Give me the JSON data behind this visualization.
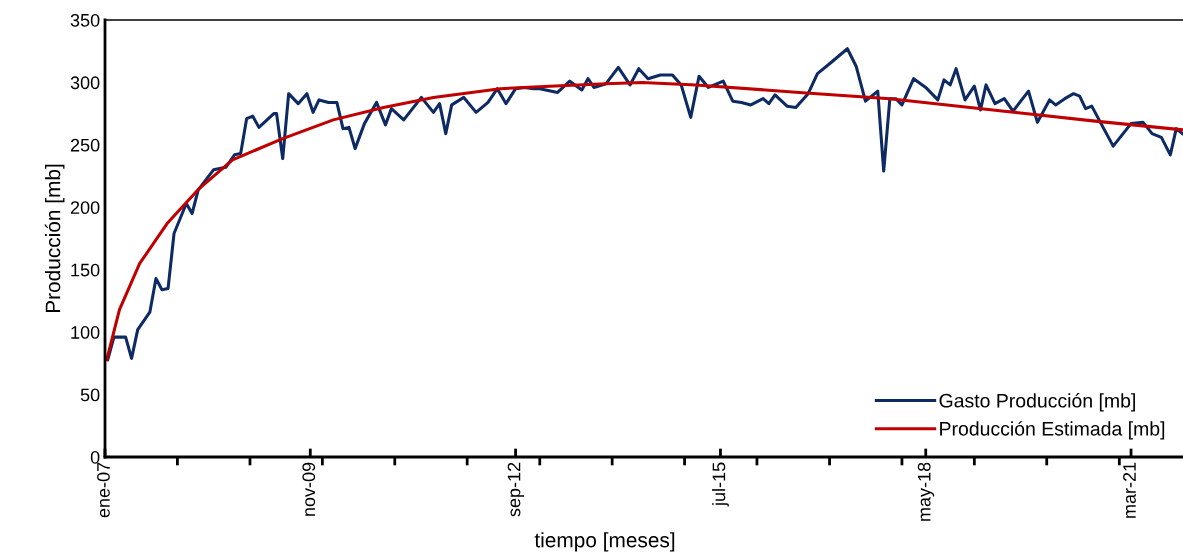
{
  "chart_data": {
    "type": "line",
    "xlabel": "tiempo [meses]",
    "ylabel": "Producción [mb]",
    "xlim": [
      "2007-01-01",
      "2021-11-18"
    ],
    "ylim": [
      0,
      350
    ],
    "yticks": [
      0,
      50,
      100,
      150,
      200,
      250,
      300,
      350
    ],
    "xticks": [
      {
        "value": "2007-01-01",
        "label": "ene-07"
      },
      {
        "value": "2008-01-01",
        "label": null
      },
      {
        "value": "2009-01-01",
        "label": null
      },
      {
        "value": "2009-11-01",
        "label": "nov-09"
      },
      {
        "value": "2010-01-01",
        "label": null
      },
      {
        "value": "2011-01-01",
        "label": null
      },
      {
        "value": "2012-01-01",
        "label": null
      },
      {
        "value": "2012-09-01",
        "label": "sep-12"
      },
      {
        "value": "2013-01-01",
        "label": null
      },
      {
        "value": "2014-01-01",
        "label": null
      },
      {
        "value": "2015-01-01",
        "label": null
      },
      {
        "value": "2015-07-01",
        "label": "jul-15"
      },
      {
        "value": "2016-01-01",
        "label": null
      },
      {
        "value": "2017-01-01",
        "label": null
      },
      {
        "value": "2018-01-01",
        "label": null
      },
      {
        "value": "2018-05-01",
        "label": "may-18"
      },
      {
        "value": "2019-01-01",
        "label": null
      },
      {
        "value": "2020-01-01",
        "label": null
      },
      {
        "value": "2021-01-01",
        "label": null
      },
      {
        "value": "2021-03-01",
        "label": "mar-21"
      }
    ],
    "grid": false,
    "legend": "bottom right",
    "marker": "none",
    "line_style": "solid",
    "series": [
      {
        "name": "Gasto Producción [mb]",
        "color": "#0d2a63",
        "x": [
          "2007-01-15",
          "2007-02-15",
          "2007-04-15",
          "2007-05-15",
          "2007-06-15",
          "2007-08-15",
          "2007-09-15",
          "2007-10-15",
          "2007-11-15",
          "2007-12-15",
          "2008-02-15",
          "2008-03-15",
          "2008-04-15",
          "2008-07-01",
          "2008-09-01",
          "2008-10-15",
          "2008-11-15",
          "2008-12-15",
          "2009-01-15",
          "2009-02-15",
          "2009-05-01",
          "2009-05-15",
          "2009-06-15",
          "2009-07-15",
          "2009-09-01",
          "2009-10-15",
          "2009-11-15",
          "2009-12-15",
          "2010-02-01",
          "2010-03-15",
          "2010-04-15",
          "2010-05-15",
          "2010-06-15",
          "2010-08-01",
          "2010-10-01",
          "2010-11-15",
          "2010-12-15",
          "2011-02-15",
          "2011-05-15",
          "2011-07-15",
          "2011-08-15",
          "2011-09-15",
          "2011-10-15",
          "2011-12-15",
          "2012-02-15",
          "2012-04-15",
          "2012-06-01",
          "2012-07-15",
          "2012-09-01",
          "2012-10-15",
          "2012-12-01",
          "2013-01-01",
          "2013-04-01",
          "2013-06-01",
          "2013-08-01",
          "2013-09-01",
          "2013-10-01",
          "2013-12-01",
          "2014-02-01",
          "2014-04-01",
          "2014-05-15",
          "2014-07-01",
          "2014-09-01",
          "2014-11-01",
          "2014-12-15",
          "2015-02-01",
          "2015-03-15",
          "2015-05-01",
          "2015-07-15",
          "2015-09-01",
          "2015-10-15",
          "2015-12-01",
          "2016-02-01",
          "2016-03-01",
          "2016-04-01",
          "2016-06-01",
          "2016-07-15",
          "2016-09-15",
          "2016-11-01",
          "2017-01-01",
          "2017-04-01",
          "2017-05-15",
          "2017-07-01",
          "2017-09-01",
          "2017-10-01",
          "2017-11-01",
          "2017-12-01",
          "2018-01-01",
          "2018-03-01",
          "2018-05-01",
          "2018-07-01",
          "2018-08-01",
          "2018-09-01",
          "2018-10-01",
          "2018-11-15",
          "2019-01-01",
          "2019-02-01",
          "2019-03-01",
          "2019-04-15",
          "2019-06-01",
          "2019-07-15",
          "2019-10-01",
          "2019-11-15",
          "2020-01-15",
          "2020-02-15",
          "2020-04-01",
          "2020-05-15",
          "2020-06-15",
          "2020-07-15",
          "2020-08-15",
          "2020-10-01",
          "2020-12-01",
          "2021-03-01",
          "2021-05-01",
          "2021-06-15",
          "2021-08-01",
          "2021-09-15",
          "2021-10-15",
          "2021-11-15"
        ],
        "values": [
          78,
          96,
          96,
          79,
          102,
          116,
          143,
          134,
          135,
          179,
          203,
          195,
          214,
          230,
          232,
          242,
          243,
          271,
          273,
          264,
          275,
          275,
          239,
          291,
          283,
          291,
          276,
          286,
          284,
          284,
          263,
          264,
          247,
          267,
          284,
          266,
          279,
          270,
          288,
          276,
          283,
          259,
          282,
          288,
          276,
          284,
          295,
          283,
          295,
          296,
          295,
          295,
          292,
          301,
          294,
          303,
          296,
          299,
          312,
          298,
          311,
          303,
          306,
          306,
          298,
          272,
          305,
          296,
          301,
          285,
          284,
          282,
          287,
          283,
          290,
          281,
          280,
          291,
          307,
          315,
          327,
          313,
          285,
          293,
          229,
          287,
          287,
          282,
          303,
          296,
          286,
          302,
          298,
          311,
          286,
          297,
          278,
          298,
          283,
          287,
          277,
          293,
          268,
          286,
          282,
          287,
          291,
          289,
          279,
          281,
          267,
          249,
          267,
          268,
          259,
          256,
          242,
          263,
          259
        ]
      },
      {
        "name": "Producción Estimada [mb]",
        "color": "#c00000",
        "x": [
          "2007-01-10",
          "2007-03-15",
          "2007-06-25",
          "2007-11-10",
          "2008-04-20",
          "2008-10-05",
          "2009-06-15",
          "2010-02-25",
          "2010-11-05",
          "2011-07-15",
          "2012-06-15",
          "2013-02-20",
          "2013-12-01",
          "2014-06-01",
          "2015-03-01",
          "2016-08-01",
          "2017-11-01",
          "2019-06-01",
          "2020-09-01",
          "2021-11-18"
        ],
        "values": [
          78,
          118,
          155,
          187,
          215,
          238,
          255,
          270,
          280,
          288,
          295,
          297,
          299,
          300,
          298,
          292,
          287,
          277,
          269,
          262
        ]
      }
    ]
  }
}
